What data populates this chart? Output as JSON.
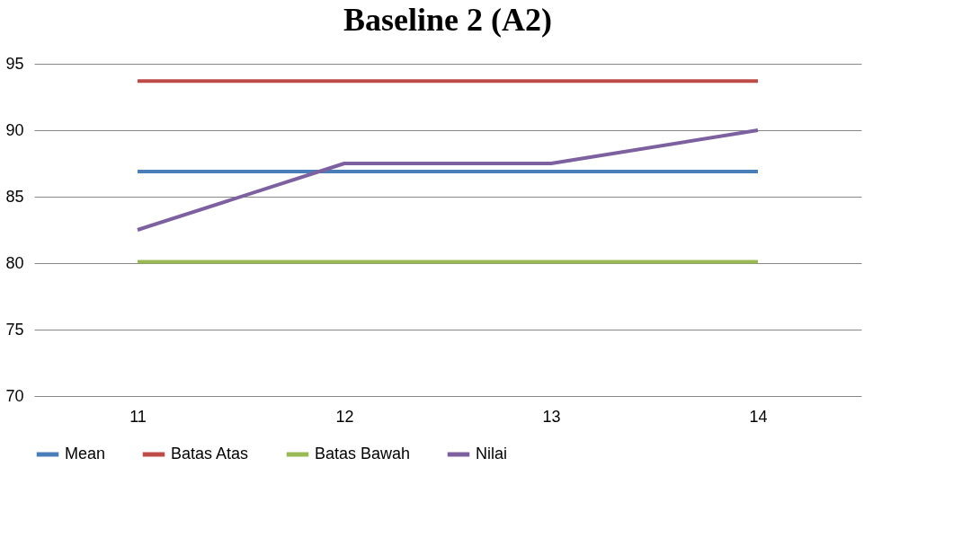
{
  "chart_data": {
    "type": "line",
    "title": "Baseline 2 (A2)",
    "categories": [
      "11",
      "12",
      "13",
      "14"
    ],
    "series": [
      {
        "name": "Mean",
        "color": "#4a7ebb",
        "values": [
          86.9,
          86.9,
          86.9,
          86.9
        ]
      },
      {
        "name": "Batas Atas",
        "color": "#be4b48",
        "values": [
          93.7,
          93.7,
          93.7,
          93.7
        ]
      },
      {
        "name": "Batas Bawah",
        "color": "#98b954",
        "values": [
          80.1,
          80.1,
          80.1,
          80.1
        ]
      },
      {
        "name": "Nilai",
        "color": "#7d60a0",
        "values": [
          82.5,
          87.5,
          87.5,
          90
        ]
      }
    ],
    "ylim": [
      70,
      95
    ],
    "yticks": [
      70,
      75,
      80,
      85,
      90,
      95
    ],
    "grid": "y",
    "legend": "bottom",
    "line_style": "solid",
    "marker": "none"
  }
}
